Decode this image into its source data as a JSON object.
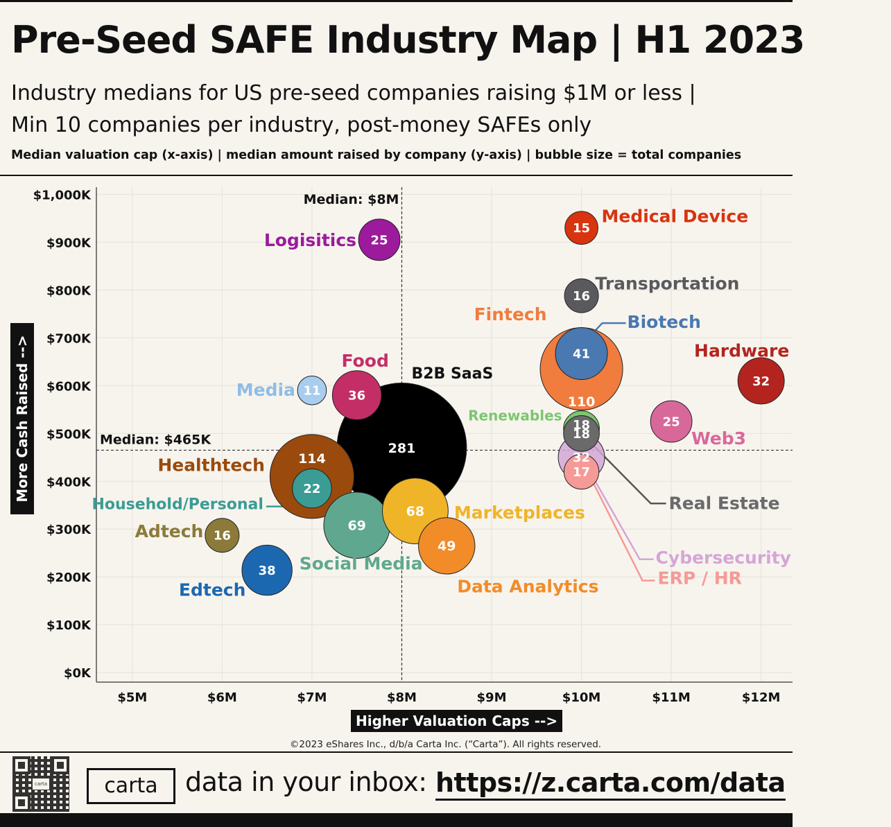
{
  "header": {
    "title": "Pre-Seed SAFE Industry Map | H1 2023",
    "subtitle_line1": "Industry medians for US pre-seed companies raising $1M or less |",
    "subtitle_line2": "Min 10 companies per industry, post-money SAFEs only",
    "axis_note": "Median valuation cap (x-axis) |  median amount raised by company (y-axis) | bubble size = total companies"
  },
  "chart_data": {
    "type": "scatter",
    "encoding": "bubble",
    "xlabel": "Higher Valuation Caps -->",
    "ylabel": "More Cash Raised -->",
    "x_unit": "$M",
    "y_unit": "$K",
    "xlim": [
      4.6,
      12.35
    ],
    "ylim": [
      -20,
      1015
    ],
    "x_ticks": [
      {
        "value": 5,
        "label": "$5M"
      },
      {
        "value": 6,
        "label": "$6M"
      },
      {
        "value": 7,
        "label": "$7M"
      },
      {
        "value": 8,
        "label": "$8M"
      },
      {
        "value": 9,
        "label": "$9M"
      },
      {
        "value": 10,
        "label": "$10M"
      },
      {
        "value": 11,
        "label": "$11M"
      },
      {
        "value": 12,
        "label": "$12M"
      }
    ],
    "y_ticks": [
      {
        "value": 0,
        "label": "$0K"
      },
      {
        "value": 100,
        "label": "$100K"
      },
      {
        "value": 200,
        "label": "$200K"
      },
      {
        "value": 300,
        "label": "$300K"
      },
      {
        "value": 400,
        "label": "$400K"
      },
      {
        "value": 500,
        "label": "$500K"
      },
      {
        "value": 600,
        "label": "$600K"
      },
      {
        "value": 700,
        "label": "$700K"
      },
      {
        "value": 800,
        "label": "$800K"
      },
      {
        "value": 900,
        "label": "$900K"
      },
      {
        "value": 1000,
        "label": "$1,000K"
      }
    ],
    "grid": true,
    "median_x": {
      "value": 8,
      "label": "Median: $8M"
    },
    "median_y": {
      "value": 465,
      "label": "Median: $465K"
    },
    "series": [
      {
        "name": "B2B SaaS",
        "x": 8.0,
        "y": 470,
        "companies": 281,
        "color": "#000000",
        "label_color": "#111111"
      },
      {
        "name": "Healthtech",
        "x": 7.0,
        "y": 410,
        "companies": 114,
        "color": "#9a4a0c",
        "label_color": "#9a4a0c"
      },
      {
        "name": "Fintech",
        "x": 10.0,
        "y": 635,
        "companies": 110,
        "color": "#f07c3e",
        "label_color": "#f07c3e"
      },
      {
        "name": "Social Media",
        "x": 7.5,
        "y": 308,
        "companies": 69,
        "color": "#5fa88f",
        "label_color": "#5fa88f"
      },
      {
        "name": "Marketplaces",
        "x": 8.15,
        "y": 338,
        "companies": 68,
        "color": "#f0b429",
        "label_color": "#f0b429"
      },
      {
        "name": "Data Analytics",
        "x": 8.5,
        "y": 265,
        "companies": 49,
        "color": "#f28c28",
        "label_color": "#f28c28"
      },
      {
        "name": "Biotech",
        "x": 10.0,
        "y": 667,
        "companies": 41,
        "color": "#4a78b0",
        "label_color": "#4a78b0"
      },
      {
        "name": "Edtech",
        "x": 6.5,
        "y": 214,
        "companies": 38,
        "color": "#1c68b0",
        "label_color": "#1c68b0"
      },
      {
        "name": "Food",
        "x": 7.5,
        "y": 580,
        "companies": 36,
        "color": "#c42e66",
        "label_color": "#c42e66"
      },
      {
        "name": "Hardware",
        "x": 12.0,
        "y": 610,
        "companies": 32,
        "color": "#b3241f",
        "label_color": "#b3241f"
      },
      {
        "name": "Cybersecurity",
        "x": 10.0,
        "y": 450,
        "companies": 32,
        "color": "#d4a6d6",
        "label_color": "#d4a6d6"
      },
      {
        "name": "Logisitics",
        "x": 7.75,
        "y": 905,
        "companies": 25,
        "color": "#9c1a9c",
        "label_color": "#9c1a9c"
      },
      {
        "name": "Web3",
        "x": 11.0,
        "y": 525,
        "companies": 25,
        "color": "#d9689a",
        "label_color": "#d9689a"
      },
      {
        "name": "Household/Personal",
        "x": 7.0,
        "y": 385,
        "companies": 22,
        "color": "#3a9c94",
        "label_color": "#3a9c94"
      },
      {
        "name": "Renewables",
        "x": 10.0,
        "y": 510,
        "companies": 18,
        "color": "#7cc670",
        "label_color": "#7cc670"
      },
      {
        "name": "Real Estate",
        "x": 10.0,
        "y": 500,
        "companies": 18,
        "color": "#6a6a6a",
        "label_color": "#6a6a6a"
      },
      {
        "name": "ERP / HR",
        "x": 10.0,
        "y": 420,
        "companies": 17,
        "color": "#f59a96",
        "label_color": "#f59a96"
      },
      {
        "name": "Adtech",
        "x": 6.0,
        "y": 287,
        "companies": 16,
        "color": "#8b7a3a",
        "label_color": "#8b7a3a"
      },
      {
        "name": "Transportation",
        "x": 10.0,
        "y": 788,
        "companies": 16,
        "color": "#5a5a5e",
        "label_color": "#5a5a5e"
      },
      {
        "name": "Medical Device",
        "x": 10.0,
        "y": 930,
        "companies": 15,
        "color": "#d8340f",
        "label_color": "#d8340f"
      },
      {
        "name": "Media",
        "x": 7.0,
        "y": 590,
        "companies": 11,
        "color": "#a8cdee",
        "label_color": "#8fbde4"
      }
    ]
  },
  "footer": {
    "copyright": "©2023 eShares Inc., d/b/a Carta Inc. (“Carta”). All rights reserved.",
    "logo_text": "carta",
    "qr_text": "carta",
    "cta_text": "data in your inbox:",
    "url": "https://z.carta.com/data"
  }
}
